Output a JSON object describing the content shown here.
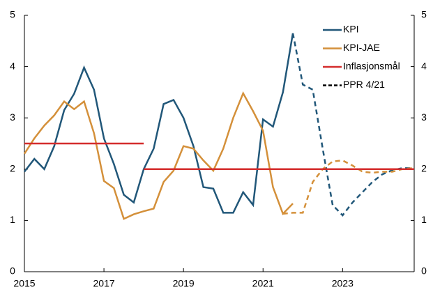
{
  "chart_data": {
    "type": "line",
    "xlim": [
      2015,
      2024.8
    ],
    "xticks": [
      2015,
      2017,
      2019,
      2021,
      2023
    ],
    "ylim": [
      0,
      5
    ],
    "yticks": [
      0,
      1,
      2,
      3,
      4,
      5
    ],
    "y2lim": [
      0,
      5
    ],
    "y2ticks": [
      0,
      1,
      2,
      3,
      4,
      5
    ],
    "legend": "top-right",
    "projection_label": "PPR 4/21",
    "projection_color": "#000000",
    "series": [
      {
        "name": "KPI",
        "color": "#215779",
        "x": [
          2015,
          2015.25,
          2015.5,
          2015.75,
          2016,
          2016.25,
          2016.5,
          2016.75,
          2017,
          2017.25,
          2017.5,
          2017.75,
          2018,
          2018.25,
          2018.5,
          2018.75,
          2019,
          2019.25,
          2019.5,
          2019.75,
          2020,
          2020.25,
          2020.5,
          2020.75,
          2021,
          2021.25,
          2021.5,
          2021.75
        ],
        "values": [
          1.95,
          2.2,
          2.0,
          2.45,
          3.15,
          3.47,
          3.98,
          3.55,
          2.6,
          2.1,
          1.5,
          1.35,
          2.0,
          2.4,
          3.27,
          3.35,
          3.0,
          2.45,
          1.65,
          1.62,
          1.15,
          1.15,
          1.55,
          1.3,
          2.97,
          2.83,
          3.5,
          4.65
        ],
        "projection": {
          "x": [
            2021.75,
            2022,
            2022.25,
            2022.5,
            2022.75,
            2023,
            2023.25,
            2023.5,
            2023.75,
            2024,
            2024.25,
            2024.5,
            2024.75
          ],
          "values": [
            4.65,
            3.65,
            3.55,
            2.4,
            1.3,
            1.1,
            1.35,
            1.55,
            1.75,
            1.9,
            1.98,
            2.02,
            2.02
          ]
        }
      },
      {
        "name": "KPI-JAE",
        "color": "#d4903a",
        "x": [
          2015,
          2015.25,
          2015.5,
          2015.75,
          2016,
          2016.25,
          2016.5,
          2016.75,
          2017,
          2017.25,
          2017.5,
          2017.75,
          2018,
          2018.25,
          2018.5,
          2018.75,
          2019,
          2019.25,
          2019.5,
          2019.75,
          2020,
          2020.25,
          2020.5,
          2020.75,
          2021,
          2021.25,
          2021.5,
          2021.75
        ],
        "values": [
          2.3,
          2.6,
          2.85,
          3.05,
          3.32,
          3.17,
          3.32,
          2.7,
          1.77,
          1.63,
          1.03,
          1.12,
          1.18,
          1.23,
          1.75,
          1.97,
          2.45,
          2.4,
          2.17,
          1.97,
          2.4,
          3.0,
          3.48,
          3.13,
          2.75,
          1.65,
          1.13,
          1.33
        ],
        "projection": {
          "x": [
            2021.5,
            2021.75,
            2022,
            2022.25,
            2022.5,
            2022.75,
            2023,
            2023.25,
            2023.5,
            2023.75,
            2024,
            2024.25,
            2024.5,
            2024.75
          ],
          "values": [
            1.13,
            1.15,
            1.15,
            1.75,
            2.0,
            2.15,
            2.17,
            2.07,
            1.95,
            1.93,
            1.95,
            1.95,
            2.0,
            2.02
          ]
        }
      },
      {
        "name": "Inflasjonsmål",
        "color": "#d42d2d",
        "x": [
          2015,
          2018,
          2018,
          2018,
          2024.8
        ],
        "values": [
          2.5,
          2.5,
          null,
          2.0,
          2.0
        ]
      }
    ]
  }
}
